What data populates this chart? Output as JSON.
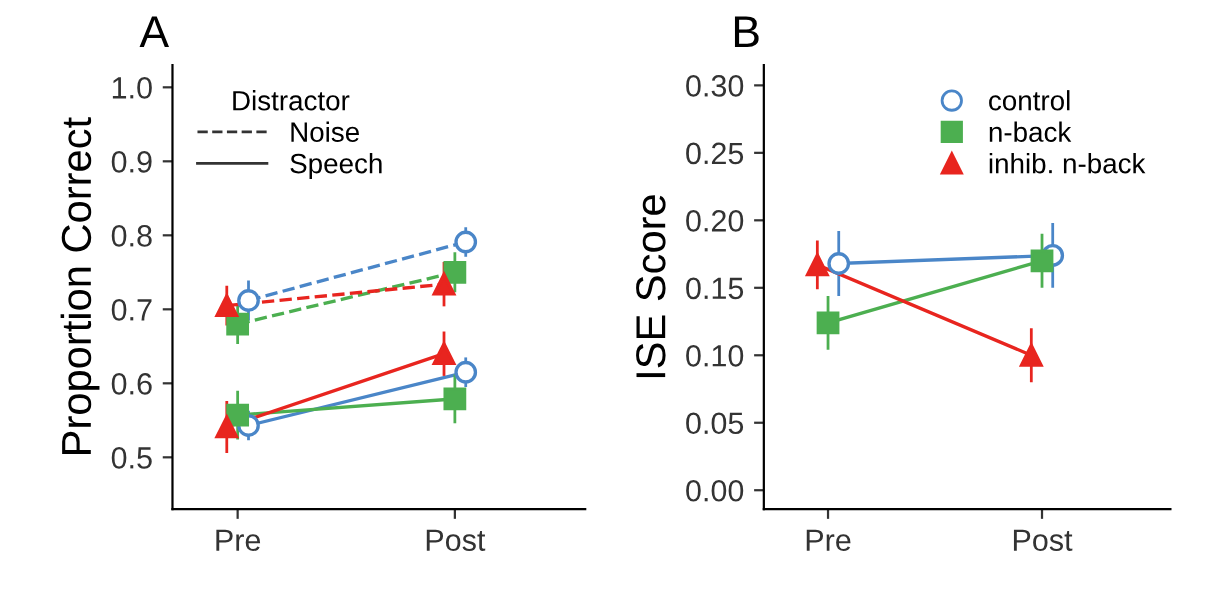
{
  "chart_data": [
    {
      "type": "line",
      "title": "A",
      "ylabel": "Proportion Correct",
      "legend_title": "Distractor",
      "annotations": [
        "Noise",
        "Speech"
      ],
      "categories": [
        "Pre",
        "Post"
      ],
      "ylim": [
        0.43,
        1.03
      ],
      "yticks": [
        {
          "value": 0.5,
          "label": "0.5"
        },
        {
          "value": 0.6,
          "label": "0.6"
        },
        {
          "value": 0.7,
          "label": "0.7"
        },
        {
          "value": 0.8,
          "label": "0.8"
        },
        {
          "value": 0.9,
          "label": "0.9"
        },
        {
          "value": 1.0,
          "label": "1.0"
        }
      ],
      "grid": false,
      "legend": "top left",
      "series": [
        {
          "color": "#4a86c8",
          "marker": "circle",
          "line_style": "dashed",
          "values": [
            0.712,
            0.791
          ],
          "errors": [
            0.027,
            0.02
          ]
        },
        {
          "color": "#4caf50",
          "marker": "square",
          "line_style": "dashed",
          "values": [
            0.68,
            0.75
          ],
          "errors": [
            0.027,
            0.027
          ]
        },
        {
          "color": "#e8251f",
          "marker": "triangle",
          "line_style": "dashed",
          "values": [
            0.705,
            0.734
          ],
          "errors": [
            0.027,
            0.03
          ]
        },
        {
          "color": "#4a86c8",
          "marker": "circle",
          "line_style": "solid",
          "values": [
            0.543,
            0.615
          ],
          "errors": [
            0.02,
            0.02
          ]
        },
        {
          "color": "#4caf50",
          "marker": "square",
          "line_style": "solid",
          "values": [
            0.557,
            0.579
          ],
          "errors": [
            0.033,
            0.033
          ]
        },
        {
          "color": "#e8251f",
          "marker": "triangle",
          "line_style": "solid",
          "values": [
            0.541,
            0.64
          ],
          "errors": [
            0.035,
            0.03
          ]
        }
      ]
    },
    {
      "type": "line",
      "title": "B",
      "ylabel": "ISE Score",
      "categories": [
        "Pre",
        "Post"
      ],
      "ylim": [
        -0.014,
        0.315
      ],
      "yticks": [
        {
          "value": 0.0,
          "label": "0.00"
        },
        {
          "value": 0.05,
          "label": "0.05"
        },
        {
          "value": 0.1,
          "label": "0.10"
        },
        {
          "value": 0.15,
          "label": "0.15"
        },
        {
          "value": 0.2,
          "label": "0.20"
        },
        {
          "value": 0.25,
          "label": "0.25"
        },
        {
          "value": 0.3,
          "label": "0.30"
        }
      ],
      "grid": false,
      "legend": "top right",
      "series": [
        {
          "name": "control",
          "color": "#4a86c8",
          "marker": "circle",
          "line_style": "solid",
          "values": [
            0.168,
            0.174
          ],
          "errors": [
            0.024,
            0.024
          ]
        },
        {
          "name": "n-back",
          "color": "#4caf50",
          "marker": "square",
          "line_style": "solid",
          "values": [
            0.124,
            0.17
          ],
          "errors": [
            0.02,
            0.02
          ]
        },
        {
          "name": "inhib. n-back",
          "color": "#e8251f",
          "marker": "triangle",
          "line_style": "solid",
          "values": [
            0.167,
            0.1
          ],
          "errors": [
            0.018,
            0.02
          ]
        }
      ]
    }
  ]
}
